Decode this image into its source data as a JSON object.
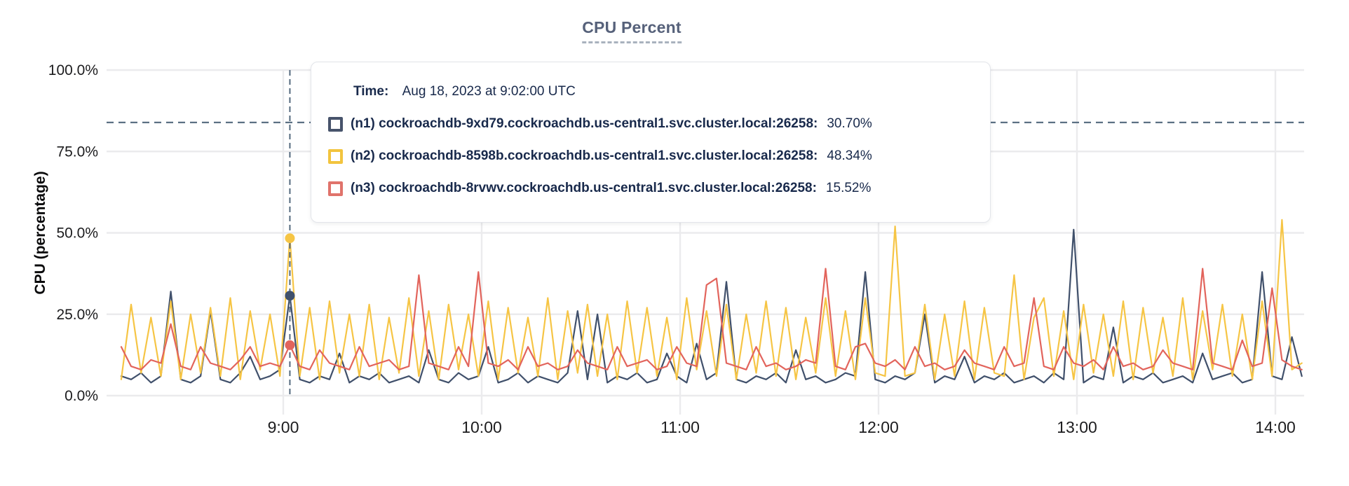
{
  "page": {
    "title": "CPU Percent"
  },
  "tooltip": {
    "time_label": "Time:",
    "time_value": "Aug 18, 2023 at 9:02:00 UTC",
    "rows": [
      {
        "id": "n1",
        "name": "(n1) cockroachdb-9xd79.cockroachdb.us-central1.svc.cluster.local:26258:",
        "value": "30.70%",
        "color": "#47536B"
      },
      {
        "id": "n2",
        "name": "(n2) cockroachdb-8598b.cockroachdb.us-central1.svc.cluster.local:26258:",
        "value": "48.34%",
        "color": "#F2C43E"
      },
      {
        "id": "n3",
        "name": "(n3) cockroachdb-8rvwv.cockroachdb.us-central1.svc.cluster.local:26258:",
        "value": "15.52%",
        "color": "#E0736B"
      }
    ]
  },
  "chart_data": {
    "type": "line",
    "title": "CPU Percent",
    "xlabel": "",
    "ylabel": "CPU (percentage)",
    "ylim": [
      0,
      100
    ],
    "grid": true,
    "legend_position": "tooltip-only",
    "grid_color": "#EBEBED",
    "axis_text_color": "#1C1C1E",
    "y_ticks": [
      {
        "label": "0.0%",
        "value": 0
      },
      {
        "label": "25.0%",
        "value": 25
      },
      {
        "label": "50.0%",
        "value": 50
      },
      {
        "label": "75.0%",
        "value": 75
      },
      {
        "label": "100.0%",
        "value": 100
      }
    ],
    "x_ticks": [
      {
        "label": "9:00",
        "minute": 540
      },
      {
        "label": "10:00",
        "minute": 600
      },
      {
        "label": "11:00",
        "minute": 660
      },
      {
        "label": "12:00",
        "minute": 720
      },
      {
        "label": "13:00",
        "minute": 780
      },
      {
        "label": "14:00",
        "minute": 840
      }
    ],
    "x_start_min": 491,
    "x_step_min": 3,
    "threshold": {
      "value": 83.9,
      "style": "dashed",
      "color": "#5C7184"
    },
    "hover": {
      "minute": 542,
      "index": 17,
      "time": "Aug 18, 2023 at 9:02:00 UTC",
      "line_color": "#54697E",
      "values": [
        30.7,
        48.34,
        15.52
      ]
    },
    "series": [
      {
        "id": "n1",
        "name": "cockroachdb-9xd79.cockroachdb.us-central1.svc.cluster.local:26258",
        "color": "#40506B",
        "hover_value": 30.7,
        "values": [
          6,
          5,
          7,
          4,
          6,
          32,
          5,
          4,
          6,
          26,
          5,
          4,
          7,
          12,
          5,
          6,
          8,
          30.7,
          5,
          4,
          6,
          5,
          13,
          4,
          6,
          5,
          7,
          4,
          5,
          6,
          4,
          14,
          5,
          4,
          7,
          5,
          6,
          15,
          4,
          5,
          7,
          4,
          6,
          5,
          4,
          7,
          26,
          5,
          25,
          4,
          6,
          5,
          7,
          4,
          5,
          13,
          6,
          4,
          16,
          5,
          7,
          35,
          5,
          4,
          6,
          5,
          7,
          4,
          14,
          5,
          6,
          4,
          5,
          7,
          6,
          38,
          5,
          4,
          6,
          5,
          7,
          25,
          4,
          6,
          5,
          12,
          4,
          6,
          5,
          7,
          4,
          5,
          6,
          4,
          7,
          5,
          51,
          4,
          6,
          5,
          21,
          4,
          6,
          5,
          7,
          4,
          5,
          6,
          4,
          13,
          5,
          6,
          7,
          4,
          5,
          38,
          6,
          5,
          18,
          6
        ]
      },
      {
        "id": "n2",
        "name": "cockroachdb-8598b.cockroachdb.us-central1.svc.cluster.local:26258",
        "color": "#F6C545",
        "hover_value": 48.34,
        "values": [
          5,
          28,
          7,
          24,
          6,
          29,
          5,
          25,
          7,
          27,
          6,
          30,
          5,
          26,
          8,
          25,
          6,
          48.34,
          6,
          27,
          5,
          29,
          7,
          25,
          6,
          28,
          5,
          24,
          7,
          30,
          6,
          26,
          5,
          28,
          8,
          25,
          6,
          29,
          5,
          27,
          7,
          24,
          6,
          30,
          5,
          26,
          7,
          28,
          6,
          25,
          5,
          29,
          7,
          27,
          6,
          24,
          5,
          30,
          8,
          26,
          6,
          28,
          5,
          25,
          7,
          29,
          6,
          27,
          5,
          24,
          7,
          30,
          6,
          26,
          5,
          30,
          7,
          6,
          52,
          6,
          7,
          28,
          5,
          25,
          6,
          29,
          5,
          27,
          7,
          6,
          37,
          5,
          24,
          30,
          6,
          26,
          5,
          28,
          7,
          25,
          6,
          29,
          5,
          27,
          7,
          24,
          6,
          30,
          5,
          26,
          8,
          28,
          6,
          25,
          5,
          29,
          6,
          54,
          8,
          10
        ]
      },
      {
        "id": "n3",
        "name": "cockroachdb-8rvwv.cockroachdb.us-central1.svc.cluster.local:26258",
        "color": "#E2645C",
        "hover_value": 15.52,
        "values": [
          15,
          9,
          8,
          11,
          10,
          22,
          9,
          8,
          15,
          10,
          9,
          8,
          11,
          15,
          9,
          10,
          9,
          15.52,
          9,
          8,
          14,
          10,
          9,
          8,
          15,
          9,
          10,
          11,
          8,
          9,
          37,
          10,
          9,
          8,
          15,
          9,
          38,
          10,
          9,
          11,
          8,
          15,
          9,
          10,
          8,
          9,
          14,
          10,
          9,
          8,
          15,
          9,
          10,
          11,
          8,
          9,
          15,
          10,
          9,
          34,
          36,
          10,
          9,
          8,
          15,
          9,
          10,
          8,
          9,
          11,
          10,
          39,
          9,
          8,
          15,
          16,
          10,
          9,
          11,
          8,
          15,
          9,
          10,
          8,
          9,
          14,
          10,
          9,
          8,
          15,
          9,
          10,
          30,
          9,
          8,
          15,
          10,
          9,
          11,
          8,
          15,
          9,
          10,
          8,
          9,
          14,
          10,
          9,
          8,
          39,
          10,
          9,
          8,
          17,
          9,
          10,
          33,
          11,
          9,
          8
        ]
      }
    ]
  }
}
